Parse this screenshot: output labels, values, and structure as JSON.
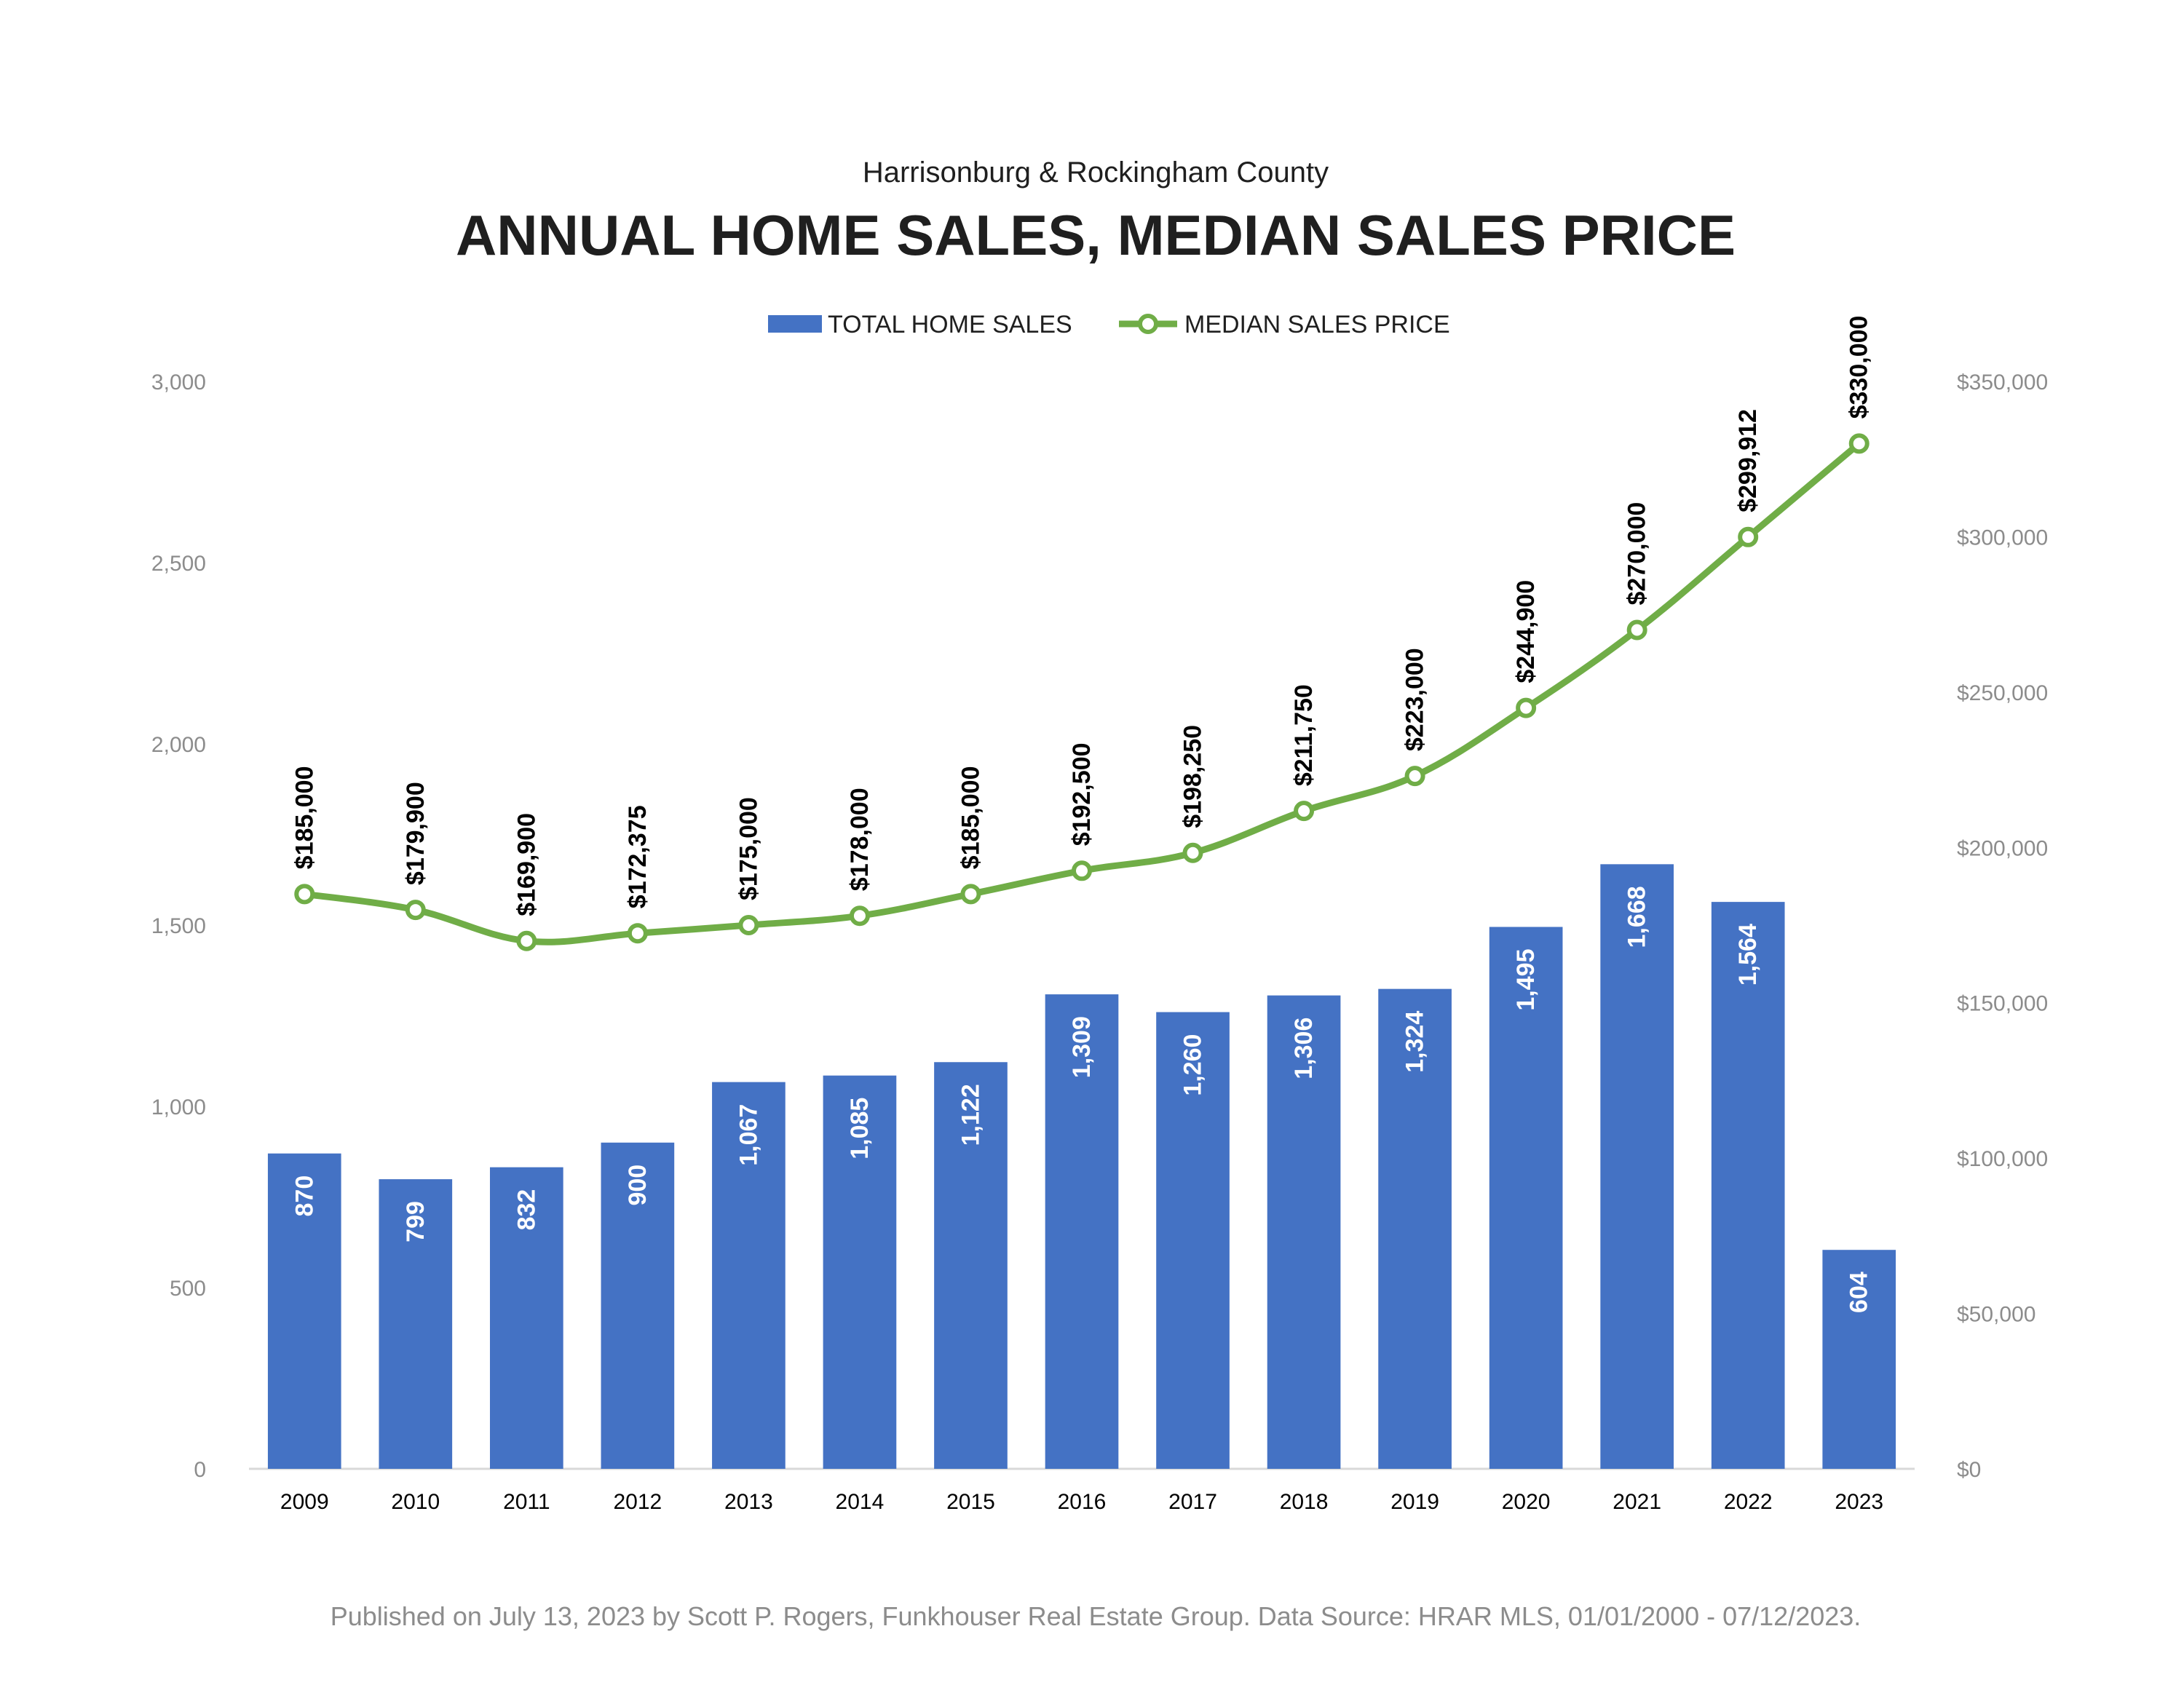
{
  "chart_data": {
    "type": "bar+line",
    "subtitle": "Harrisonburg & Rockingham County",
    "title": "ANNUAL HOME SALES, MEDIAN SALES PRICE",
    "categories": [
      "2009",
      "2010",
      "2011",
      "2012",
      "2013",
      "2014",
      "2015",
      "2016",
      "2017",
      "2018",
      "2019",
      "2020",
      "2021",
      "2022",
      "2023"
    ],
    "series": [
      {
        "name": "TOTAL HOME SALES",
        "type": "bar",
        "axis": "left",
        "color": "#4472c4",
        "values": [
          870,
          799,
          832,
          900,
          1067,
          1085,
          1122,
          1309,
          1260,
          1306,
          1324,
          1495,
          1668,
          1564,
          604
        ],
        "labels": [
          "870",
          "799",
          "832",
          "900",
          "1,067",
          "1,085",
          "1,122",
          "1,309",
          "1,260",
          "1,306",
          "1,324",
          "1,495",
          "1,668",
          "1,564",
          "604"
        ]
      },
      {
        "name": "MEDIAN SALES PRICE",
        "type": "line",
        "axis": "right",
        "color": "#70ad47",
        "values": [
          185000,
          179900,
          169900,
          172375,
          175000,
          178000,
          185000,
          192500,
          198250,
          211750,
          223000,
          244900,
          270000,
          299912,
          330000
        ],
        "labels": [
          "$185,000",
          "$179,900",
          "$169,900",
          "$172,375",
          "$175,000",
          "$178,000",
          "$185,000",
          "$192,500",
          "$198,250",
          "$211,750",
          "$223,000",
          "$244,900",
          "$270,000",
          "$299,912",
          "$330,000"
        ]
      }
    ],
    "y_left": {
      "min": 0,
      "max": 3000,
      "ticks": [
        "0",
        "500",
        "1,000",
        "1,500",
        "2,000",
        "2,500",
        "3,000"
      ]
    },
    "y_right": {
      "min": 0,
      "max": 350000,
      "ticks": [
        "$0",
        "$50,000",
        "$100,000",
        "$150,000",
        "$200,000",
        "$250,000",
        "$300,000",
        "$350,000"
      ]
    },
    "legend": {
      "position": "top-center",
      "bar_label": "TOTAL HOME SALES",
      "line_label": "MEDIAN SALES PRICE"
    },
    "grid": false
  },
  "footer": "Published on July 13, 2023 by Scott P. Rogers, Funkhouser Real Estate Group. Data Source: HRAR MLS, 01/01/2000 - 07/12/2023."
}
